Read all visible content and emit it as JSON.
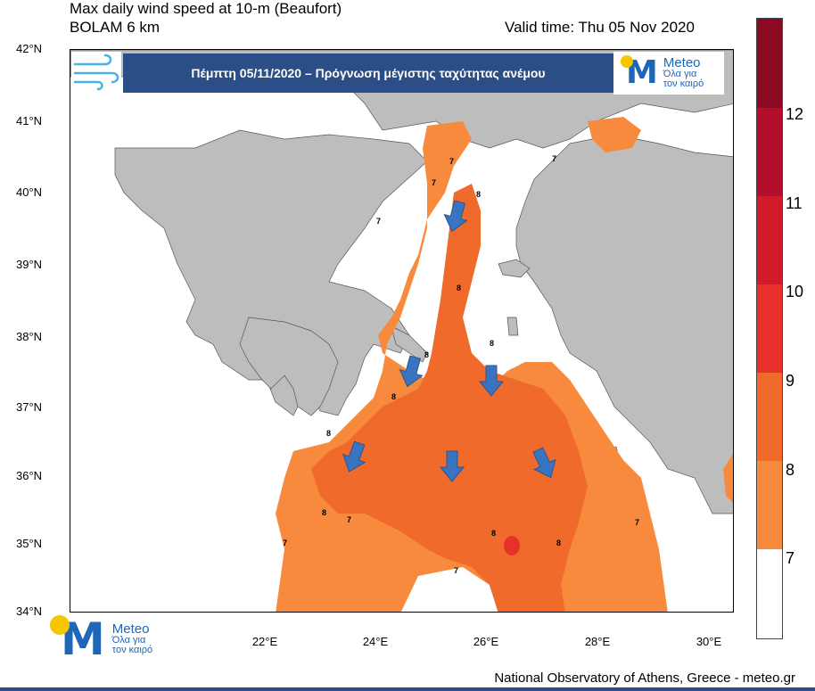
{
  "header": {
    "title_line1": "Max daily wind speed at 10-m (Beaufort)",
    "title_line2": "BOLAM 6 km",
    "valid_time": "Valid time: Thu 05 Nov 2020"
  },
  "banner": {
    "text": "Πέμπτη 05/11/2020 – Πρόγνωση μέγιστης ταχύτητας ανέμου",
    "icon": "wind-icon"
  },
  "logo": {
    "brand": "Meteo",
    "tagline_1": "Όλα για",
    "tagline_2": "τον καιρό"
  },
  "footer": "National Observatory of Athens, Greece - meteo.gr",
  "axes": {
    "lat_labels": [
      "42°N",
      "41°N",
      "40°N",
      "39°N",
      "38°N",
      "37°N",
      "36°N",
      "35°N",
      "34°N"
    ],
    "lon_labels": [
      "22°E",
      "24°E",
      "26°E",
      "28°E",
      "30°E"
    ]
  },
  "legend": {
    "levels": [
      "7",
      "8",
      "9",
      "10",
      "11",
      "12"
    ],
    "colors": {
      "below7": "#ffffff",
      "b7_8": "#f78a3c",
      "b8_9": "#f06a2c",
      "b9_10": "#e8302a",
      "b10_11": "#d01c2a",
      "b11_12": "#b30f2a",
      "above12": "#8a0a22",
      "land": "#bdbdbd",
      "arrow": "#3a73c0"
    }
  },
  "contour_labels": [
    "7",
    "8"
  ]
}
